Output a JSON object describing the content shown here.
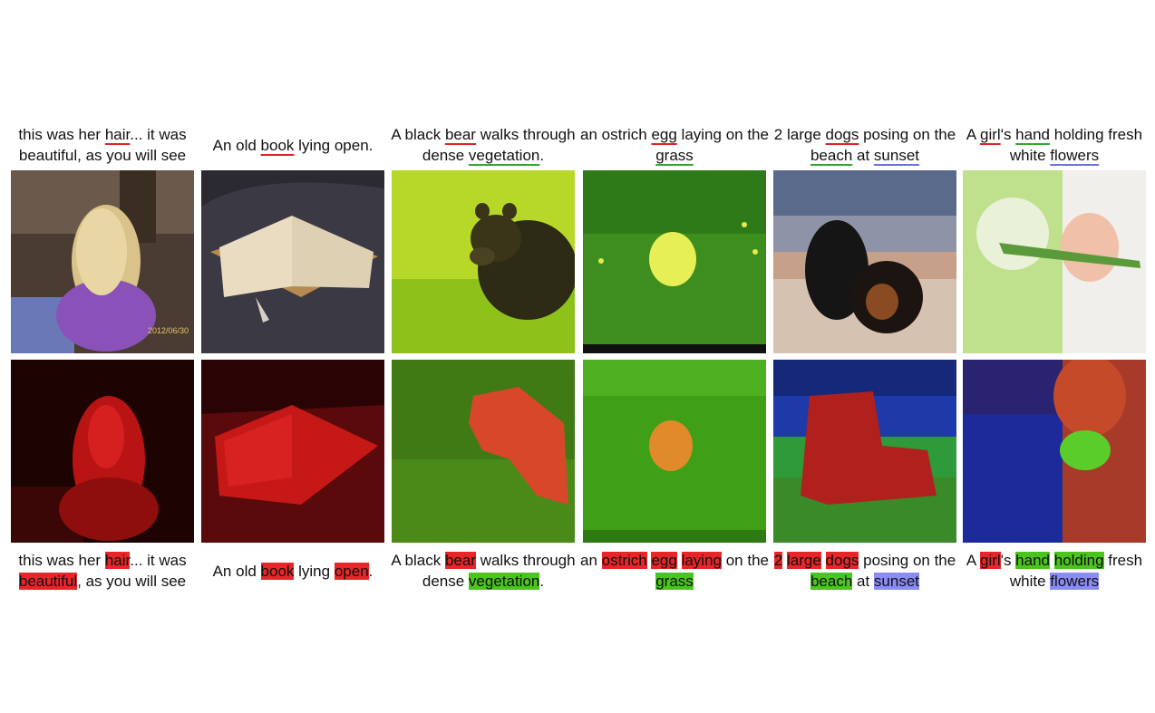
{
  "columns": [
    {
      "top_caption": [
        {
          "t": "this was her "
        },
        {
          "t": "hair",
          "u": "r"
        },
        {
          "t": "... it was beautiful, as you will see"
        }
      ],
      "bottom_caption": [
        {
          "t": "this was her "
        },
        {
          "t": "hair",
          "h": "r"
        },
        {
          "t": "... it was "
        },
        {
          "t": "beautiful",
          "h": "r"
        },
        {
          "t": ", as you will see"
        }
      ],
      "stamp": "2012/06/30"
    },
    {
      "top_caption": [
        {
          "t": "An old "
        },
        {
          "t": "book",
          "u": "r"
        },
        {
          "t": " lying open."
        }
      ],
      "bottom_caption": [
        {
          "t": "An old "
        },
        {
          "t": "book",
          "h": "r"
        },
        {
          "t": " lying "
        },
        {
          "t": "open",
          "h": "r"
        },
        {
          "t": "."
        }
      ]
    },
    {
      "top_caption": [
        {
          "t": "A black "
        },
        {
          "t": "bear",
          "u": "r"
        },
        {
          "t": " walks through dense "
        },
        {
          "t": "vegetation",
          "u": "g"
        },
        {
          "t": "."
        }
      ],
      "bottom_caption": [
        {
          "t": "A black "
        },
        {
          "t": "bear",
          "h": "r"
        },
        {
          "t": " walks through dense "
        },
        {
          "t": "vegetation",
          "h": "g"
        },
        {
          "t": "."
        }
      ]
    },
    {
      "top_caption": [
        {
          "t": "an ostrich "
        },
        {
          "t": "egg",
          "u": "r"
        },
        {
          "t": " laying on the "
        },
        {
          "t": "grass",
          "u": "g"
        }
      ],
      "bottom_caption": [
        {
          "t": "an "
        },
        {
          "t": "ostrich",
          "h": "r"
        },
        {
          "t": " "
        },
        {
          "t": "egg",
          "h": "r"
        },
        {
          "t": " "
        },
        {
          "t": "laying",
          "h": "r"
        },
        {
          "t": " on the "
        },
        {
          "t": "grass",
          "h": "g"
        }
      ]
    },
    {
      "top_caption": [
        {
          "t": "2 large "
        },
        {
          "t": "dogs",
          "u": "r"
        },
        {
          "t": " posing on the "
        },
        {
          "t": "beach",
          "u": "g"
        },
        {
          "t": " at "
        },
        {
          "t": "sunset",
          "u": "b"
        }
      ],
      "bottom_caption": [
        {
          "t": "2",
          "h": "r"
        },
        {
          "t": " "
        },
        {
          "t": "large",
          "h": "r"
        },
        {
          "t": " "
        },
        {
          "t": "dogs",
          "h": "r"
        },
        {
          "t": " posing on the "
        },
        {
          "t": "beach",
          "h": "g"
        },
        {
          "t": " at "
        },
        {
          "t": "sunset",
          "h": "b"
        }
      ]
    },
    {
      "top_caption": [
        {
          "t": "A "
        },
        {
          "t": "girl",
          "u": "r"
        },
        {
          "t": "'s "
        },
        {
          "t": "hand",
          "u": "g"
        },
        {
          "t": " holding fresh white "
        },
        {
          "t": "flowers",
          "u": "b"
        }
      ],
      "bottom_caption": [
        {
          "t": "A "
        },
        {
          "t": "girl",
          "h": "r"
        },
        {
          "t": "'s "
        },
        {
          "t": "hand",
          "h": "g"
        },
        {
          "t": " "
        },
        {
          "t": "holding",
          "h": "g"
        },
        {
          "t": " fresh white "
        },
        {
          "t": "flowers",
          "h": "b"
        }
      ]
    }
  ]
}
